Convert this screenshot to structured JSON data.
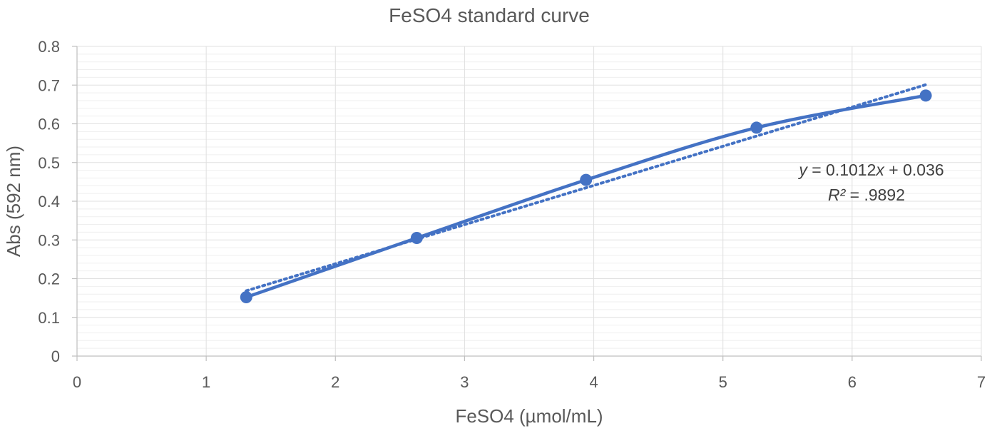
{
  "chart_data": {
    "type": "scatter",
    "title": "FeSO4 standard curve",
    "xlabel": "FeSO4 (µmol/mL)",
    "ylabel": "Abs (592 nm)",
    "xlim": [
      0,
      7
    ],
    "ylim": [
      0,
      0.8
    ],
    "x_ticks": [
      "0",
      "1",
      "2",
      "3",
      "4",
      "5",
      "6",
      "7"
    ],
    "y_ticks": [
      "0",
      "0.1",
      "0.2",
      "0.3",
      "0.4",
      "0.5",
      "0.6",
      "0.7",
      "0.8"
    ],
    "grid": true,
    "series": [
      {
        "x": [
          1.31,
          2.63,
          3.94,
          5.26,
          6.57
        ],
        "y": [
          0.152,
          0.305,
          0.455,
          0.59,
          0.673
        ],
        "color": "#4472C4",
        "smooth_line": true
      }
    ],
    "trendline": {
      "slope": 0.1012,
      "intercept": 0.036,
      "x_range": [
        1.31,
        6.57
      ],
      "style": "dotted",
      "color": "#4472C4"
    },
    "annotation": {
      "equation_y": "y",
      "equation_rest": " = 0.1012",
      "equation_x": "x",
      "equation_tail": " + 0.036",
      "r2_label": "R²",
      "r2_value": " = .9892"
    }
  }
}
